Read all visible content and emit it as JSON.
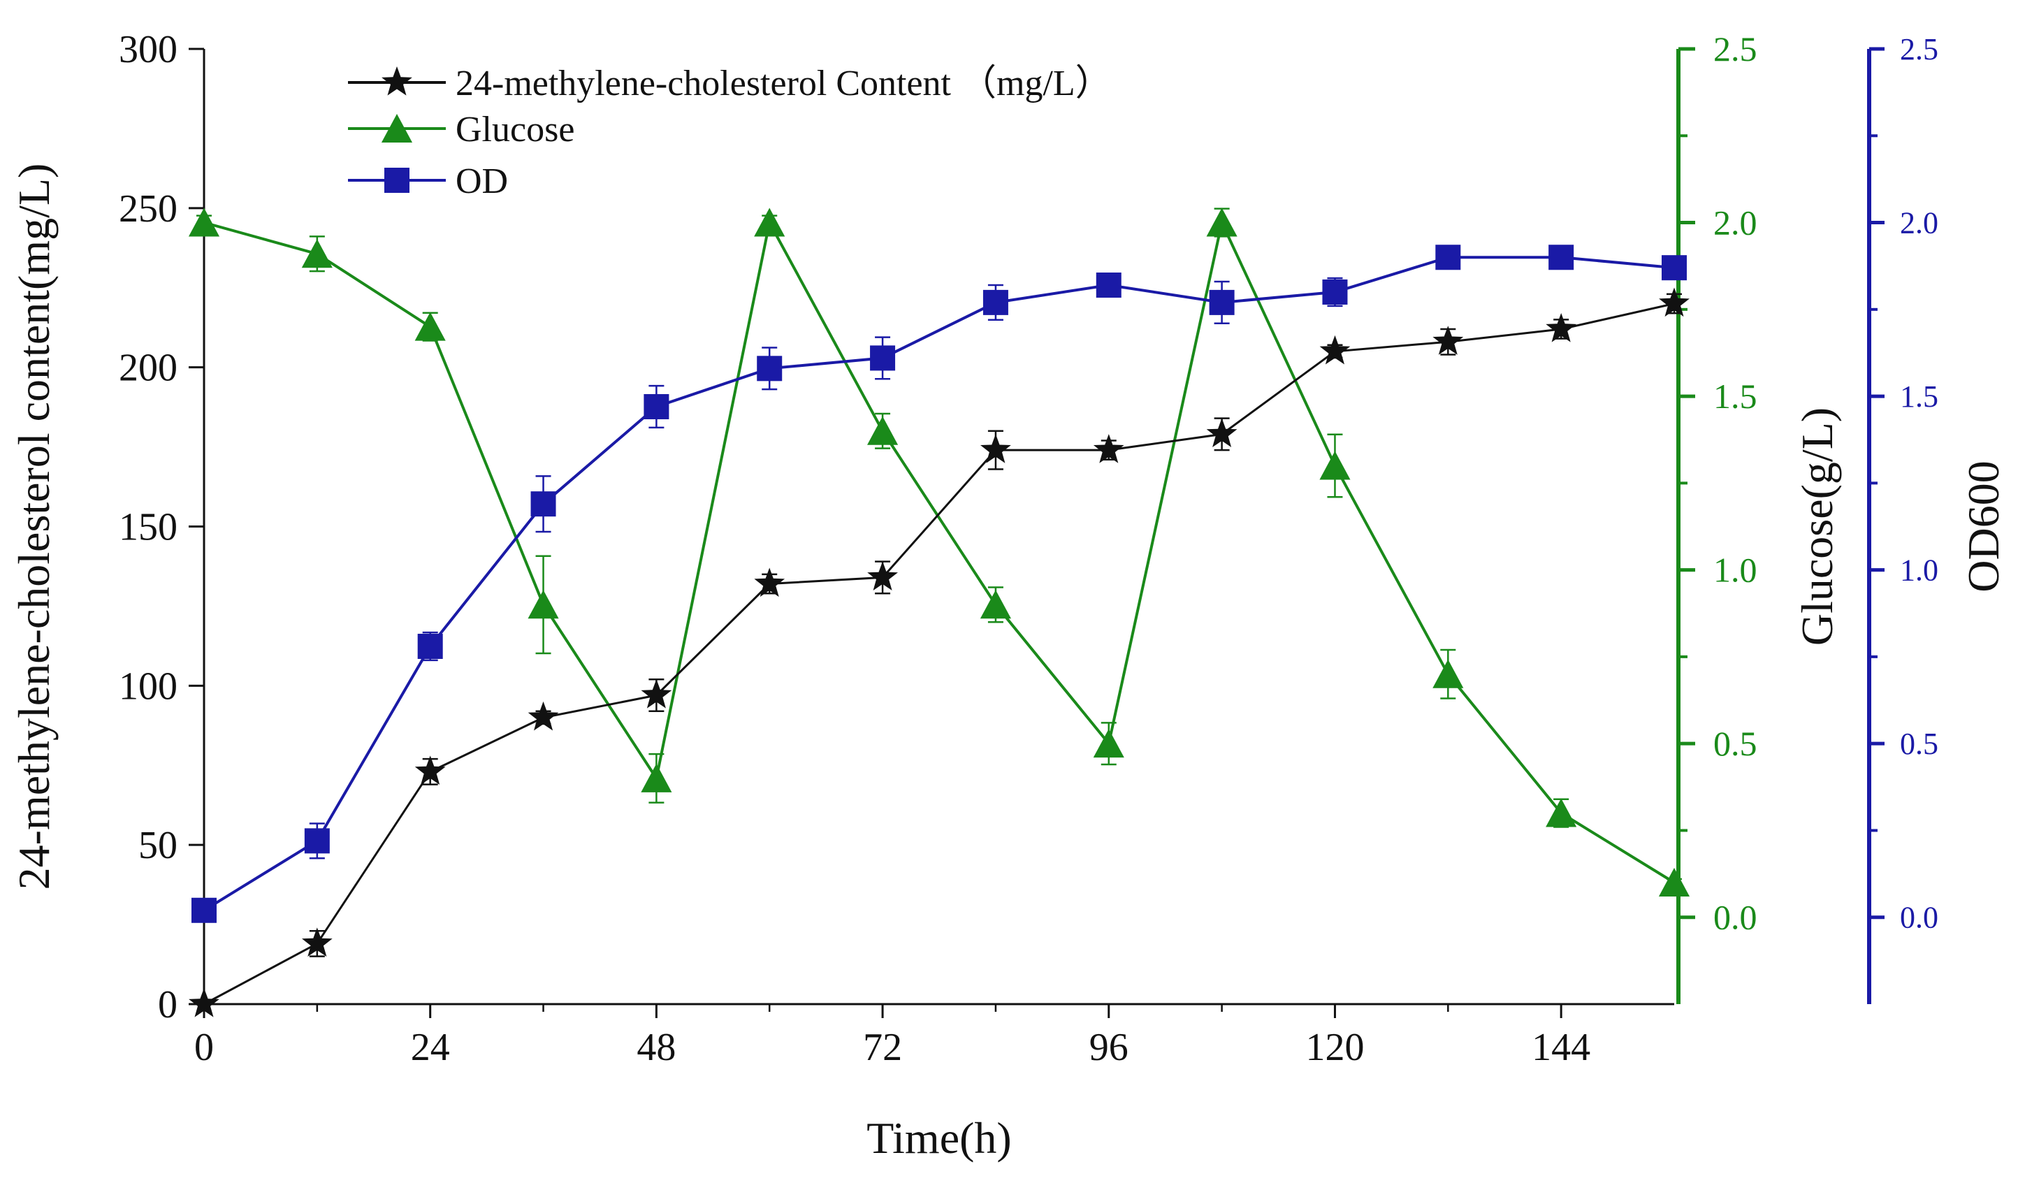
{
  "chart_data": {
    "type": "line",
    "xlabel": "Time(h)",
    "xlim": [
      0,
      156
    ],
    "xticks": [
      "0",
      "24",
      "48",
      "72",
      "96",
      "120",
      "144"
    ],
    "xtick_values": [
      0,
      24,
      48,
      72,
      96,
      120,
      144
    ],
    "y_axes": {
      "left": {
        "label": "24-methylene-cholesterol content(mg/L)",
        "range": [
          0,
          300
        ],
        "ticks": [
          "0",
          "50",
          "100",
          "150",
          "200",
          "250",
          "300"
        ],
        "color": "#111111"
      },
      "glucose": {
        "label": "Glucose(g/L)",
        "range": [
          -0.25,
          2.5
        ],
        "ticks": [
          "0.0",
          "0.5",
          "1.0",
          "1.5",
          "2.0",
          "2.5"
        ],
        "color": "#1a8a1a"
      },
      "od": {
        "label": "OD600",
        "range": [
          -0.25,
          2.5
        ],
        "ticks": [
          "0.0",
          "0.5",
          "1.0",
          "1.5",
          "2.0",
          "2.5"
        ],
        "color": "#1a1aa6"
      }
    },
    "x": [
      0,
      12,
      24,
      36,
      48,
      60,
      72,
      84,
      96,
      108,
      120,
      132,
      144,
      156
    ],
    "series": [
      {
        "name": "24-methylene-cholesterol Content （mg/L）",
        "axis": "left",
        "marker": "star",
        "color": "#111111",
        "values": [
          0,
          19,
          73,
          90,
          97,
          132,
          134,
          174,
          174,
          179,
          205,
          208,
          212,
          220
        ],
        "errors": [
          0,
          4,
          4,
          2,
          5,
          3,
          5,
          6,
          3,
          5,
          2,
          4,
          3,
          3
        ]
      },
      {
        "name": "Glucose",
        "axis": "glucose",
        "marker": "triangle",
        "color": "#1a8a1a",
        "values": [
          2.0,
          1.91,
          1.7,
          0.9,
          0.4,
          2.0,
          1.4,
          0.9,
          0.5,
          2.0,
          1.3,
          0.7,
          0.3,
          0.1
        ],
        "errors": [
          0.02,
          0.05,
          0.04,
          0.14,
          0.07,
          0.02,
          0.05,
          0.05,
          0.06,
          0.04,
          0.09,
          0.07,
          0.04,
          0.01
        ]
      },
      {
        "name": "OD",
        "axis": "od",
        "marker": "square",
        "color": "#1a1aa6",
        "values": [
          0.02,
          0.22,
          0.78,
          1.19,
          1.47,
          1.58,
          1.61,
          1.77,
          1.82,
          1.77,
          1.8,
          1.9,
          1.9,
          1.87
        ],
        "errors": [
          0.03,
          0.05,
          0.04,
          0.08,
          0.06,
          0.06,
          0.06,
          0.05,
          0.02,
          0.06,
          0.04,
          0.02,
          0.03,
          0.02
        ]
      }
    ],
    "legend_position": "top-left"
  }
}
